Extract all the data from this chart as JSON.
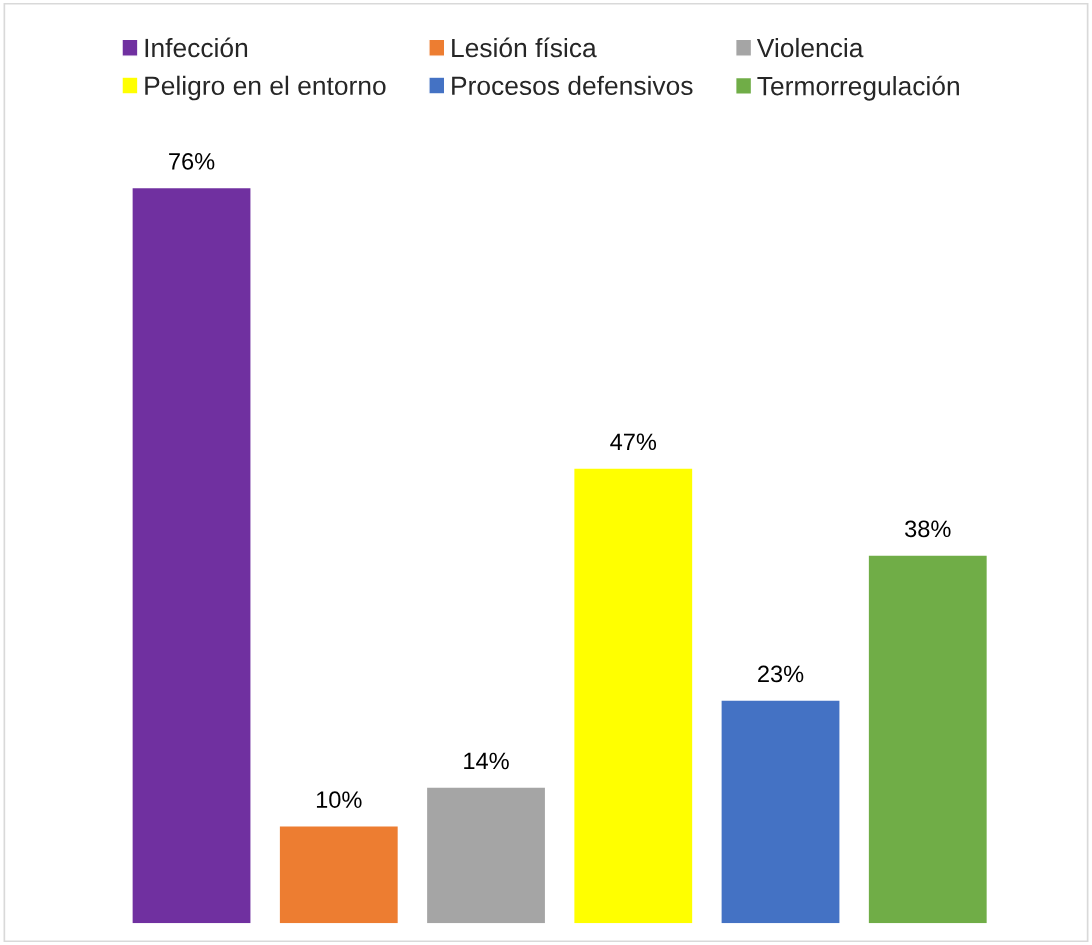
{
  "chart_data": {
    "type": "bar",
    "categories": [
      null
    ],
    "series": [
      {
        "name": "Infección",
        "color": "#7030a0",
        "values": [
          76
        ],
        "value_labels": [
          "76%"
        ]
      },
      {
        "name": "Lesión física",
        "color": "#ed7d31",
        "values": [
          10
        ],
        "value_labels": [
          "10%"
        ]
      },
      {
        "name": "Violencia",
        "color": "#a5a5a5",
        "values": [
          14
        ],
        "value_labels": [
          "14%"
        ]
      },
      {
        "name": "Peligro en el entorno",
        "color": "#ffff00",
        "values": [
          47
        ],
        "value_labels": [
          "47%"
        ]
      },
      {
        "name": "Procesos defensivos",
        "color": "#4472c4",
        "values": [
          23
        ],
        "value_labels": [
          "23%"
        ]
      },
      {
        "name": "Termorregulación",
        "color": "#70ad47",
        "values": [
          38
        ],
        "value_labels": [
          "38%"
        ]
      }
    ],
    "legend": "top"
  }
}
